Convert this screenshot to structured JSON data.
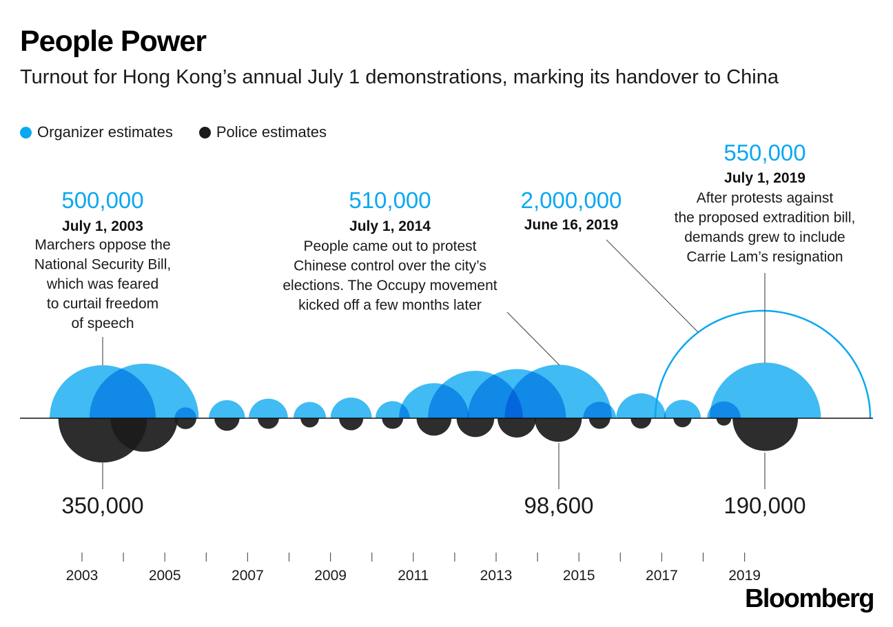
{
  "title": "People Power",
  "subtitle": "Turnout for Hong Kong’s annual July 1 demonstrations, marking its handover to China",
  "legend": {
    "organizer": {
      "label": "Organizer estimates",
      "color": "#0aa8f0"
    },
    "police": {
      "label": "Police estimates",
      "color": "#1b1b1b"
    }
  },
  "brand": "Bloomberg",
  "chart_data": {
    "type": "bubble-timeline",
    "title": "People Power",
    "subtitle": "Turnout for Hong Kong’s annual July 1 demonstrations, marking its handover to China",
    "x_ticks": [
      2003,
      2005,
      2007,
      2009,
      2011,
      2013,
      2015,
      2017,
      2019
    ],
    "x_range": [
      2003,
      2021
    ],
    "series": [
      {
        "name": "Organizer estimates",
        "color": "#0aa8f0",
        "points": [
          {
            "x": 2003.5,
            "value": 500000
          },
          {
            "x": 2004.5,
            "value": 530000
          },
          {
            "x": 2005.5,
            "value": 21000
          },
          {
            "x": 2006.5,
            "value": 58000
          },
          {
            "x": 2007.5,
            "value": 68000
          },
          {
            "x": 2008.5,
            "value": 47000
          },
          {
            "x": 2009.5,
            "value": 76000
          },
          {
            "x": 2010.5,
            "value": 52000
          },
          {
            "x": 2011.5,
            "value": 218000
          },
          {
            "x": 2012.5,
            "value": 400000
          },
          {
            "x": 2013.5,
            "value": 430000
          },
          {
            "x": 2014.5,
            "value": 510000
          },
          {
            "x": 2015.5,
            "value": 48000
          },
          {
            "x": 2016.5,
            "value": 110000
          },
          {
            "x": 2017.5,
            "value": 60000
          },
          {
            "x": 2018.5,
            "value": 50000
          },
          {
            "x": 2019.5,
            "value": 550000
          },
          {
            "x": 2019.7,
            "value": 2000000,
            "outline": true
          }
        ]
      },
      {
        "name": "Police estimates",
        "color": "#1b1b1b",
        "points": [
          {
            "x": 2003.5,
            "value": 350000
          },
          {
            "x": 2004.5,
            "value": 200000
          },
          {
            "x": 2005.5,
            "value": 21000
          },
          {
            "x": 2006.5,
            "value": 28000
          },
          {
            "x": 2007.5,
            "value": 20000
          },
          {
            "x": 2008.5,
            "value": 15000
          },
          {
            "x": 2009.5,
            "value": 26000
          },
          {
            "x": 2010.5,
            "value": 20000
          },
          {
            "x": 2011.5,
            "value": 54000
          },
          {
            "x": 2012.5,
            "value": 63000
          },
          {
            "x": 2013.5,
            "value": 66000
          },
          {
            "x": 2014.5,
            "value": 98600
          },
          {
            "x": 2015.5,
            "value": 20000
          },
          {
            "x": 2016.5,
            "value": 19000
          },
          {
            "x": 2017.5,
            "value": 14500
          },
          {
            "x": 2018.5,
            "value": 9800
          },
          {
            "x": 2019.5,
            "value": 190000
          }
        ]
      }
    ],
    "annotations": [
      {
        "value_label": "500,000",
        "date": "July 1, 2003",
        "text": [
          "Marchers oppose the",
          "National Security Bill,",
          "which was feared",
          "to curtail freedom",
          "of speech"
        ]
      },
      {
        "value_label": "510,000",
        "date": "July 1, 2014",
        "text": [
          "People came out to protest",
          "Chinese control over the city’s",
          "elections. The Occupy movement",
          "kicked off a few months later"
        ]
      },
      {
        "value_label": "2,000,000",
        "date": "June 16, 2019",
        "text": []
      },
      {
        "value_label": "550,000",
        "date": "July 1, 2019",
        "text": [
          "After protests against",
          "the proposed extradition bill,",
          "demands grew to include",
          "Carrie Lam’s resignation"
        ]
      }
    ],
    "bottom_labels": [
      "350,000",
      "98,600",
      "190,000"
    ]
  }
}
